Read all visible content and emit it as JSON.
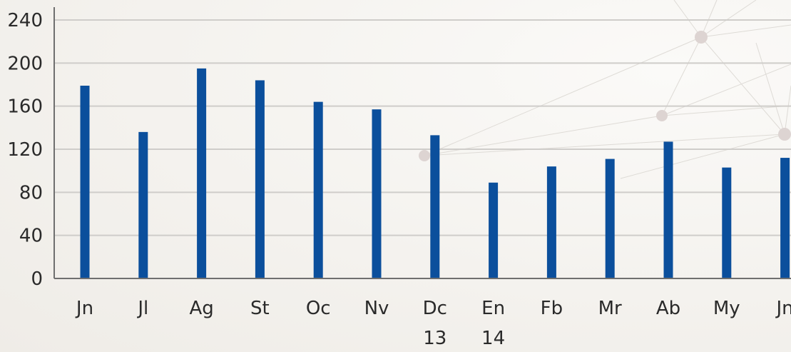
{
  "colors": {
    "bar": "#0b4f9c"
  },
  "chart_data": {
    "type": "bar",
    "categories": [
      "Jn",
      "Jl",
      "Ag",
      "St",
      "Oc",
      "Nv",
      "Dc",
      "En",
      "Fb",
      "Mr",
      "Ab",
      "My",
      "Jn"
    ],
    "category_sublabels": [
      "",
      "",
      "",
      "",
      "",
      "",
      "13",
      "14",
      "",
      "",
      "",
      "",
      ""
    ],
    "values": [
      179,
      136,
      195,
      184,
      164,
      157,
      133,
      89,
      104,
      111,
      127,
      103,
      112
    ],
    "ylim": [
      0,
      240
    ],
    "yticks": [
      0,
      40,
      80,
      120,
      160,
      200,
      240
    ],
    "grid": true,
    "title": "",
    "xlabel": "",
    "ylabel": ""
  }
}
